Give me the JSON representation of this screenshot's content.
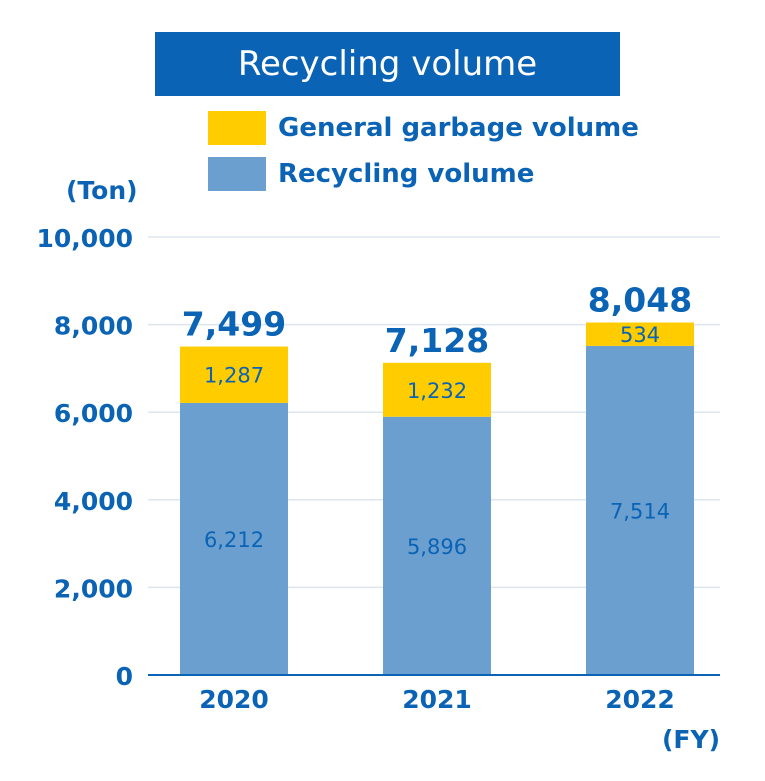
{
  "chart_data": {
    "type": "bar",
    "stacked": true,
    "title": "Recycling volume",
    "categories": [
      "2020",
      "2021",
      "2022"
    ],
    "series": [
      {
        "name": "Recycling volume",
        "values": [
          6212,
          5896,
          7514
        ],
        "labels": [
          "6,212",
          "5,896",
          "7,514"
        ]
      },
      {
        "name": "General garbage volume",
        "values": [
          1287,
          1232,
          534
        ],
        "labels": [
          "1,287",
          "1,232",
          "534"
        ]
      }
    ],
    "totals": [
      "7,499",
      "7,128",
      "8,048"
    ],
    "ylabel": "(Ton)",
    "xlabel": "(FY)",
    "ylim": [
      0,
      10000
    ],
    "yticks": [
      0,
      2000,
      4000,
      6000,
      8000,
      10000
    ],
    "ytick_labels": [
      "0",
      "2,000",
      "4,000",
      "6,000",
      "8,000",
      "10,000"
    ],
    "grid": true,
    "legend_position": "top"
  },
  "colors": {
    "recycling": "#6a9fcf",
    "garbage": "#ffcc00",
    "text": "#0a63b4",
    "title_bg": "#0a63b4",
    "grid": "#dde5ee",
    "axis": "#0a63b4"
  }
}
